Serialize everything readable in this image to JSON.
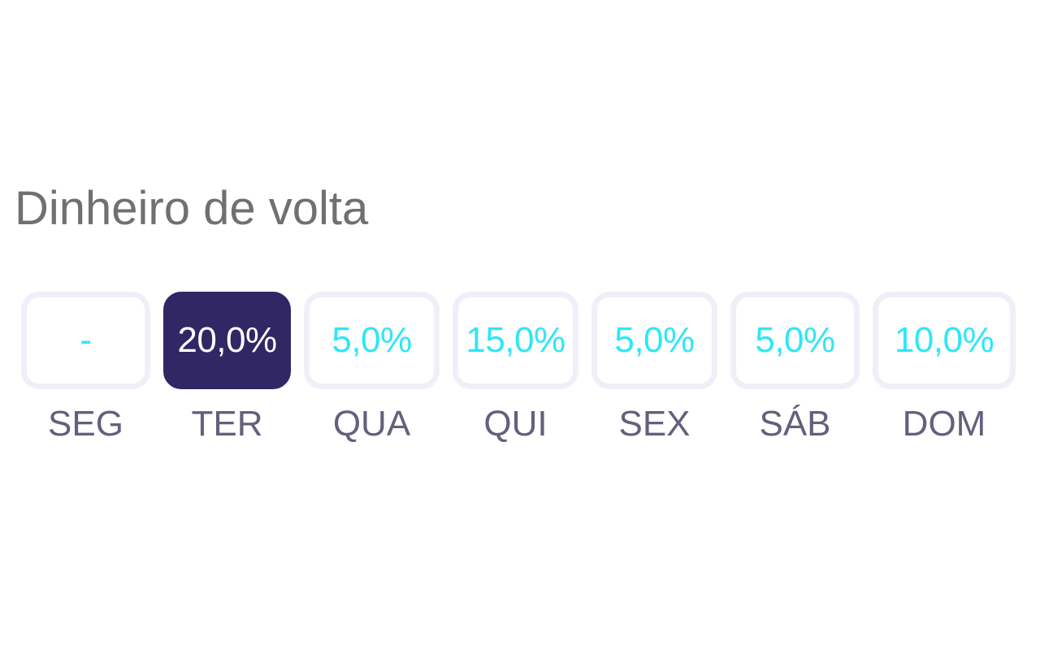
{
  "title": "Dinheiro de volta",
  "days": [
    {
      "label": "SEG",
      "value": "-",
      "selected": false
    },
    {
      "label": "TER",
      "value": "20,0%",
      "selected": true
    },
    {
      "label": "QUA",
      "value": "5,0%",
      "selected": false
    },
    {
      "label": "QUI",
      "value": "15,0%",
      "selected": false
    },
    {
      "label": "SEX",
      "value": "5,0%",
      "selected": false
    },
    {
      "label": "SÁB",
      "value": "5,0%",
      "selected": false
    },
    {
      "label": "DOM",
      "value": "10,0%",
      "selected": false
    }
  ],
  "colors": {
    "selected_background": "#312765",
    "value_text": "#2ee6f8",
    "selected_value_text": "#ffffff",
    "day_label": "#655f7c",
    "title": "#707070",
    "pill_border": "#f0eff9"
  }
}
